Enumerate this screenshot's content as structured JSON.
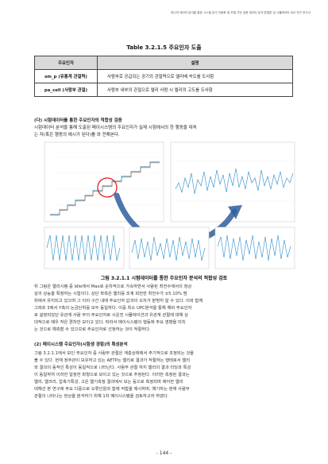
{
  "header": "하나의 데이터 분석을 통한 시스템 분석 자동화 및 모델 기반 검증 데이터 분석 방법론 및 시뮬레이터 비교 연구 보고서",
  "table": {
    "caption": "Table 3.2.1.5 주요인자 도출",
    "headers": [
      "주요인자",
      "설명"
    ],
    "rows": [
      [
        "sm_p (유통계 관절력)",
        "사람부로 공급되는 공기의 관절력으로 엘리베 속도를 도사함"
      ],
      [
        "pa_cell (사람부 관절)",
        "사람부 내부의 관절으로 엘리 사람 시 엘리의 고도를 도사함"
      ]
    ]
  },
  "section1": {
    "heading": "(다) 시험데이터를 통한 주요인자의 적합성 검증",
    "lines": [
      "시험데이터 분석을 통해 도출된 메이시스템의 주요인자가 실제 시험에서의 한 행동을 대처",
      "는 자(혹은 행동의 예시가 된다)를 와 전해본다."
    ]
  },
  "figure": {
    "caption": "그림 3.2.1.1 시험데이터를 통한 주요인자 분석의 적합성 검토"
  },
  "paragraph1": [
    "위 그림은 엘리시템 중 Idle에서 Max로 순차적으로 가속하면서 사람된 최전수에서의 정상",
    "상의 상능을 확정하는 시험이다. 상단 좌측은 엘리를 조계 회전한 최전수가 ±5.10% 범",
    "위에서 유지되고 있으며 그 이외 구간 내에 주요인자 값과의 오차가 분명히 알 수 있다. 이와 함께",
    "그래프 3에서 Y축의 눈금단위를 모두 동일하다. 이중 최소 UPC분석을 통해 예비 주요인자",
    "로 설정되었던 유관계 사람 부의 주요인자로 시운전 시뮬레이션과 유관계 관절에 대해 상",
    "대적으로 매우 작은 편차만 보이고 있다. 따라서 메이시스템의 행동에 주요 영향을 미치",
    "는 것으로 예측할 수 있으므로 주요인자로 선정하는 것이 적절하다."
  ],
  "section2": {
    "heading": "(2) 메이시스템 주요인자(시험생 경험)의 특성분석"
  },
  "paragraph2": [
    "그림 3.2.1.1에서 보인 주요인자 중 사람부 관절은 계층상태에서 주기적으로 조정되는 것을",
    "볼 수 있다. 현재 정주관이 보유하고 있는 AETP는 엘리로 결과가 적절하는 행태로서 엘리",
    "와 결과의 동적인 특성이 동일적으로 나타난다. 사람부 관절 하지 엘리의 결과 리딩과 특성",
    "이 동일하여 이러한 일정한 파형으로 보이고 있는 것으로 추정된다. 이러한 측정된 결과는",
    "엘리, 엘크리, 압축기특성, 고온 엘기측정 결과에서 보는 등으로 측정되며 제어한 엘리",
    "대해선 본 연구에 주요 다중으로 오류인원과 함께 적합을 제시하며, 예기하는 현재 사람부",
    "관절이 나타나는 현상을 분석하기 위해 1차 메이시스템을 검토하고자 하였다."
  ],
  "page_number": "- 144 -"
}
